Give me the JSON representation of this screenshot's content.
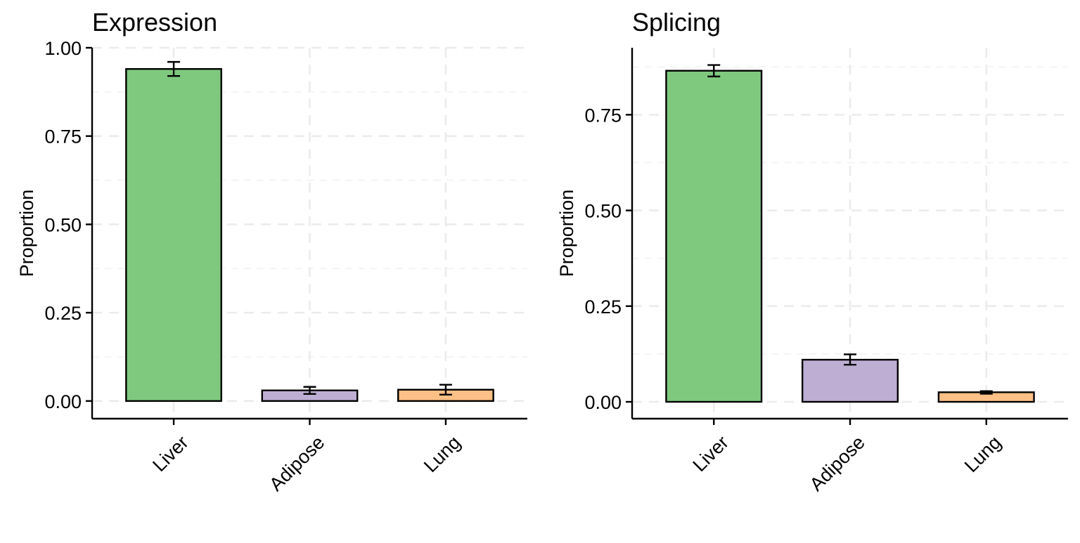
{
  "chart_data": [
    {
      "type": "bar",
      "title": "Expression",
      "ylabel": "Proportion",
      "xlabel": "",
      "categories": [
        "Liver",
        "Adipose",
        "Lung"
      ],
      "values": [
        0.94,
        0.03,
        0.032
      ],
      "error": [
        [
          0.92,
          0.96
        ],
        [
          0.02,
          0.04
        ],
        [
          0.018,
          0.046
        ]
      ],
      "colors": [
        "#7fc97f",
        "#beaed4",
        "#fdc086"
      ],
      "ylim": [
        -0.05,
        1.0
      ],
      "yticks": [
        0.0,
        0.25,
        0.5,
        0.75,
        1.0
      ],
      "ytick_labels": [
        "0.00",
        "0.25",
        "0.50",
        "0.75",
        "1.00"
      ],
      "grid": true
    },
    {
      "type": "bar",
      "title": "Splicing",
      "ylabel": "Proportion",
      "xlabel": "",
      "categories": [
        "Liver",
        "Adipose",
        "Lung"
      ],
      "values": [
        0.865,
        0.11,
        0.025
      ],
      "error": [
        [
          0.85,
          0.88
        ],
        [
          0.097,
          0.124
        ],
        [
          0.021,
          0.028
        ]
      ],
      "colors": [
        "#7fc97f",
        "#beaed4",
        "#fdc086"
      ],
      "ylim": [
        -0.044,
        0.925
      ],
      "yticks": [
        0.0,
        0.25,
        0.5,
        0.75
      ],
      "ytick_labels": [
        "0.00",
        "0.25",
        "0.50",
        "0.75"
      ],
      "grid": true
    }
  ]
}
